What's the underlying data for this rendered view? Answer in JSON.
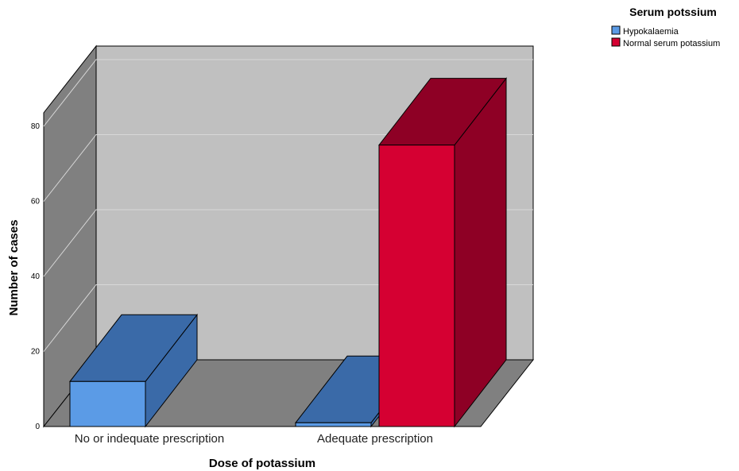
{
  "chart_data": {
    "type": "bar",
    "style": "3d-clustered",
    "xlabel": "Dose of potassium",
    "ylabel": "Number of cases",
    "categories": [
      "No or indequate prescription",
      "Adequate prescription"
    ],
    "ylim": [
      0,
      80
    ],
    "yticks": [
      0,
      20,
      40,
      60,
      80
    ],
    "grid": true,
    "legend": {
      "title": "Serum potssium",
      "placement": "top-right"
    },
    "series": [
      {
        "name": "Hypokalaemia",
        "values": [
          12,
          1
        ],
        "color": "#5b9be6",
        "top_color": "#3a6aa8",
        "side_color": "#3a6aa8"
      },
      {
        "name": "Normal serum potassium",
        "values": [
          0,
          75
        ],
        "color": "#d50032",
        "top_color": "#8e0025",
        "side_color": "#8e0025"
      }
    ],
    "colors": {
      "back_wall": "#c0c0c0",
      "side_wall": "#808080",
      "floor": "#808080",
      "gridline": "#d8d8d8",
      "outline": "#000000"
    }
  }
}
